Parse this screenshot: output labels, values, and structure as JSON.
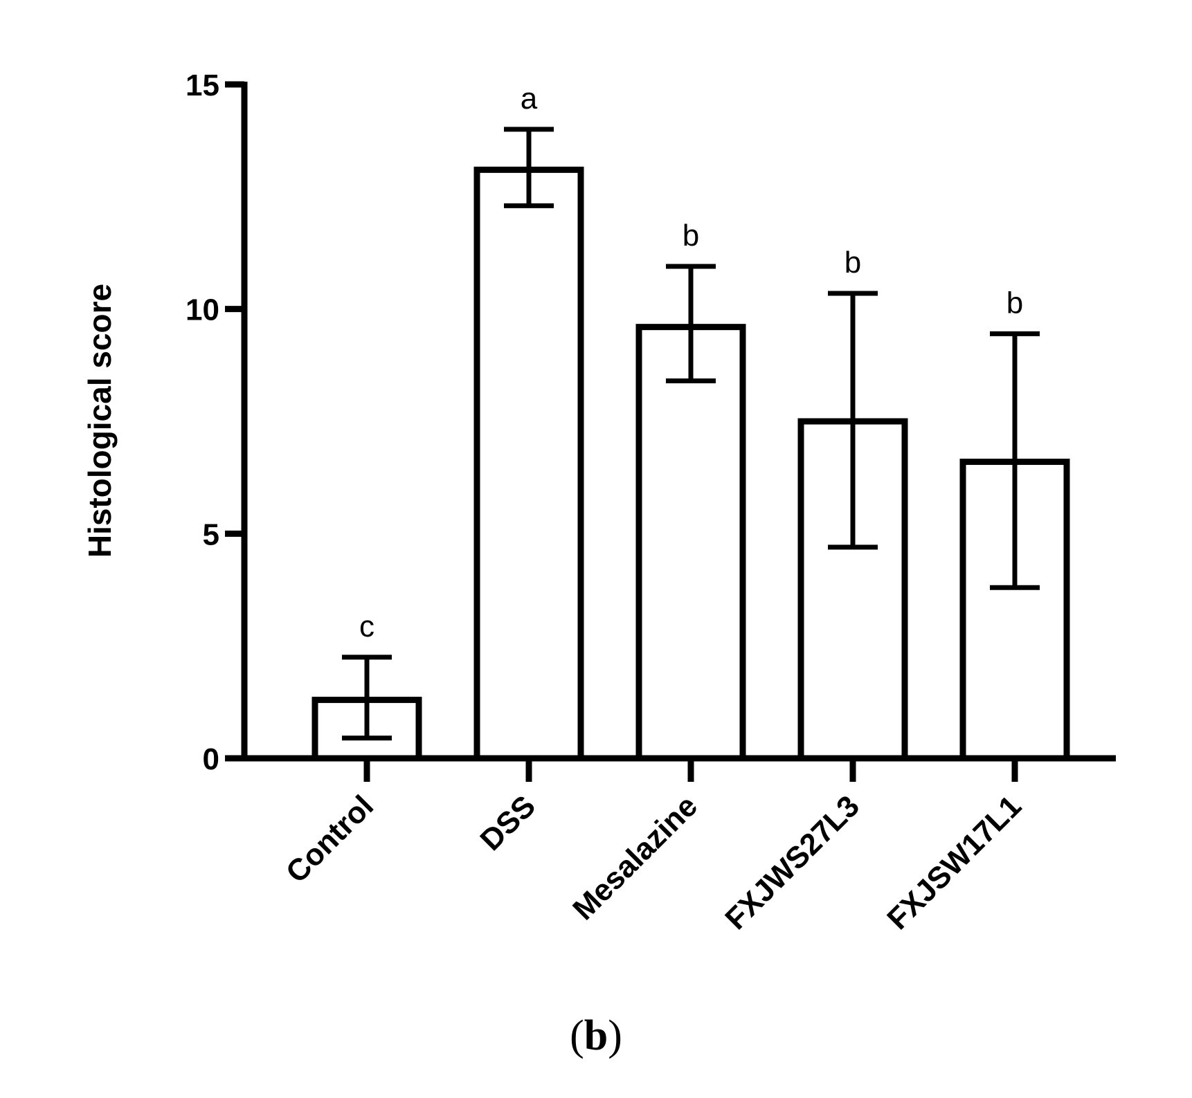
{
  "chart_data": {
    "type": "bar",
    "title": "",
    "xlabel": "",
    "ylabel": "Histological score",
    "ylim": [
      0,
      15
    ],
    "yticks": [
      "0",
      "5",
      "10",
      "15"
    ],
    "grid": false,
    "categories": [
      "Control",
      "DSS",
      "Mesalazine",
      "FXJWS27L3",
      "FXJSW17L1"
    ],
    "values": [
      1.3,
      13.1,
      9.6,
      7.5,
      6.6
    ],
    "error_low": [
      0.45,
      12.3,
      8.4,
      4.7,
      3.8
    ],
    "error_high": [
      2.25,
      14.0,
      10.95,
      10.35,
      9.45
    ],
    "significance": [
      "c",
      "a",
      "b",
      "b",
      "b"
    ],
    "colors": {
      "bar_fill": "#ffffff",
      "bar_stroke": "#000000",
      "axis": "#000000"
    }
  },
  "panel": {
    "open_paren": "(",
    "letter": "b",
    "close_paren": ")"
  }
}
